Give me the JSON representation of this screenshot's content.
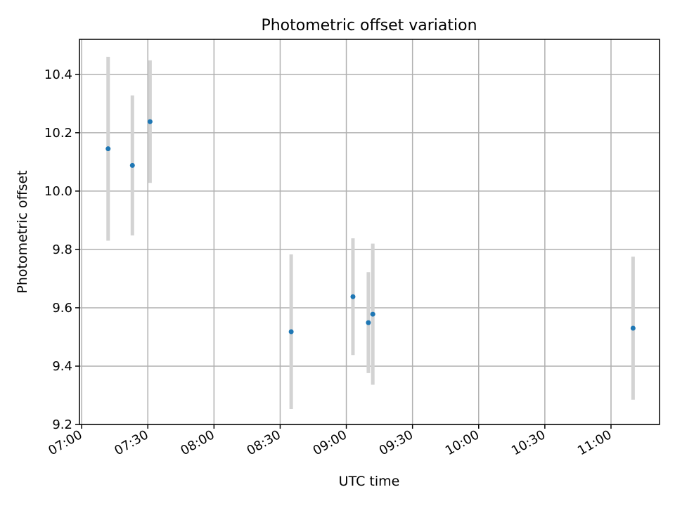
{
  "chart_data": {
    "type": "scatter",
    "title": "Photometric offset variation",
    "xlabel": "UTC time",
    "ylabel": "Photometric offset",
    "xlim": [
      "06:59",
      "11:22"
    ],
    "ylim": [
      9.2,
      10.52
    ],
    "x_ticks": [
      "07:00",
      "07:30",
      "08:00",
      "08:30",
      "09:00",
      "09:30",
      "10:00",
      "10:30",
      "11:00"
    ],
    "y_ticks": [
      9.2,
      9.4,
      9.6,
      9.8,
      10.0,
      10.2,
      10.4
    ],
    "grid": true,
    "colors": {
      "points": "#1f77b4",
      "error_bars": "#d3d3d3",
      "grid": "#b0b0b0"
    },
    "points": [
      {
        "x": "07:12",
        "y": 10.145,
        "err": 0.315
      },
      {
        "x": "07:23",
        "y": 10.088,
        "err": 0.24
      },
      {
        "x": "07:31",
        "y": 10.238,
        "err": 0.21
      },
      {
        "x": "08:35",
        "y": 9.518,
        "err": 0.265
      },
      {
        "x": "09:03",
        "y": 9.638,
        "err": 0.2
      },
      {
        "x": "09:10",
        "y": 9.549,
        "err": 0.173
      },
      {
        "x": "09:12",
        "y": 9.578,
        "err": 0.242
      },
      {
        "x": "11:10",
        "y": 9.53,
        "err": 0.245
      }
    ]
  }
}
